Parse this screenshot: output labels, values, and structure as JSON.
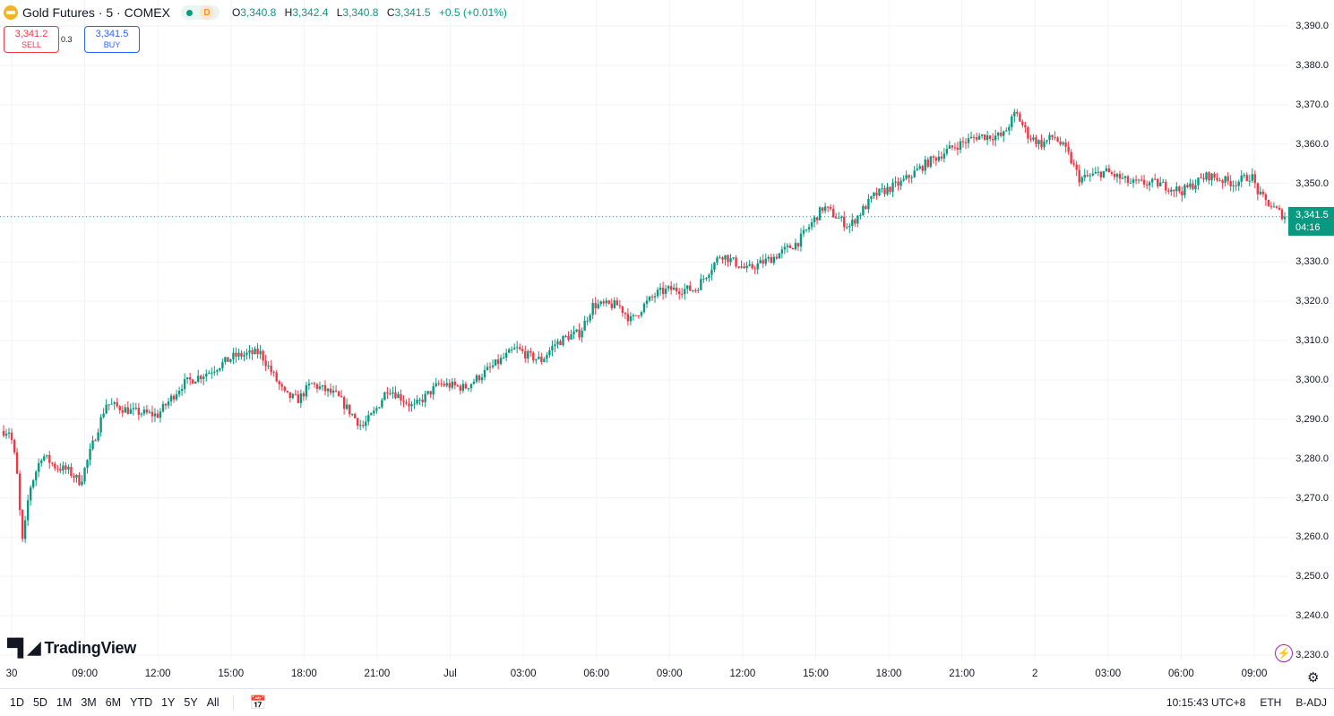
{
  "header": {
    "symbol_title": "Gold Futures · 5 · COMEX",
    "badge": "D",
    "ohlc": [
      {
        "k": "O",
        "v": "3,340.8"
      },
      {
        "k": "H",
        "v": "3,342.4"
      },
      {
        "k": "L",
        "v": "3,340.8"
      },
      {
        "k": "C",
        "v": "3,341.5"
      }
    ],
    "change": "+0.5 (+0.01%)"
  },
  "trade": {
    "sell_price": "3,341.2",
    "sell_label": "SELL",
    "spread": "0.3",
    "buy_price": "3,341.5",
    "buy_label": "BUY"
  },
  "price_label": {
    "price": "3,341.5",
    "countdown": "04:16"
  },
  "logo_text": "TradingView",
  "range_buttons": [
    "1D",
    "5D",
    "1M",
    "3M",
    "6M",
    "YTD",
    "1Y",
    "5Y",
    "All"
  ],
  "status": {
    "time": "10:15:43 UTC+8",
    "session": "ETH",
    "adjust": "B-ADJ"
  },
  "colors": {
    "up": "#089981",
    "down": "#f23645",
    "grid": "#f0f3fa",
    "accent": "#2962ff"
  },
  "chart_data": {
    "type": "candlestick",
    "interval": "5",
    "ylim": [
      3225,
      3395
    ],
    "y_ticks": [
      3230,
      3240,
      3250,
      3260,
      3270,
      3280,
      3290,
      3300,
      3310,
      3320,
      3330,
      3340,
      3350,
      3360,
      3370,
      3380,
      3390
    ],
    "y_tick_labels": [
      "3,230.0",
      "3,240.0",
      "3,250.0",
      "3,260.0",
      "3,270.0",
      "3,280.0",
      "3,290.0",
      "3,300.0",
      "3,310.0",
      "3,320.0",
      "3,330.0",
      "3,340.0",
      "3,350.0",
      "3,360.0",
      "3,370.0",
      "3,380.0",
      "3,390.0"
    ],
    "x_tick_labels": [
      "30",
      "09:00",
      "12:00",
      "15:00",
      "18:00",
      "21:00",
      "Jul",
      "03:00",
      "06:00",
      "09:00",
      "12:00",
      "15:00",
      "18:00",
      "21:00",
      "2",
      "03:00",
      "06:00",
      "09:00"
    ],
    "path": [
      {
        "t": 0,
        "p": 3287
      },
      {
        "t": 0.25,
        "p": 3287
      },
      {
        "t": 0.5,
        "p": 3278
      },
      {
        "t": 0.65,
        "p": 3265
      },
      {
        "t": 0.75,
        "p": 3258
      },
      {
        "t": 1.0,
        "p": 3272
      },
      {
        "t": 1.5,
        "p": 3281
      },
      {
        "t": 2.0,
        "p": 3278
      },
      {
        "t": 2.5,
        "p": 3277
      },
      {
        "t": 3.0,
        "p": 3274
      },
      {
        "t": 3.5,
        "p": 3284
      },
      {
        "t": 4.0,
        "p": 3294
      },
      {
        "t": 5.0,
        "p": 3292
      },
      {
        "t": 6.0,
        "p": 3291
      },
      {
        "t": 7.0,
        "p": 3299
      },
      {
        "t": 8.0,
        "p": 3302
      },
      {
        "t": 9.0,
        "p": 3306
      },
      {
        "t": 10.0,
        "p": 3307
      },
      {
        "t": 11.0,
        "p": 3296
      },
      {
        "t": 11.5,
        "p": 3295
      },
      {
        "t": 12.0,
        "p": 3299
      },
      {
        "t": 13.0,
        "p": 3296
      },
      {
        "t": 14.0,
        "p": 3288
      },
      {
        "t": 14.5,
        "p": 3292
      },
      {
        "t": 15.0,
        "p": 3298
      },
      {
        "t": 16.0,
        "p": 3293
      },
      {
        "t": 17.0,
        "p": 3299
      },
      {
        "t": 18.0,
        "p": 3298
      },
      {
        "t": 19.0,
        "p": 3303
      },
      {
        "t": 20.0,
        "p": 3308
      },
      {
        "t": 20.5,
        "p": 3306
      },
      {
        "t": 21.0,
        "p": 3305
      },
      {
        "t": 21.5,
        "p": 3309
      },
      {
        "t": 22.0,
        "p": 3311
      },
      {
        "t": 22.5,
        "p": 3312
      },
      {
        "t": 23.0,
        "p": 3319
      },
      {
        "t": 24.0,
        "p": 3319
      },
      {
        "t": 24.5,
        "p": 3315
      },
      {
        "t": 25.0,
        "p": 3319
      },
      {
        "t": 25.5,
        "p": 3322
      },
      {
        "t": 26.0,
        "p": 3323
      },
      {
        "t": 27.0,
        "p": 3323
      },
      {
        "t": 28.0,
        "p": 3332
      },
      {
        "t": 29.0,
        "p": 3328
      },
      {
        "t": 30.0,
        "p": 3331
      },
      {
        "t": 31.0,
        "p": 3335
      },
      {
        "t": 32.0,
        "p": 3344
      },
      {
        "t": 33.0,
        "p": 3339
      },
      {
        "t": 34.0,
        "p": 3347
      },
      {
        "t": 35.0,
        "p": 3350
      },
      {
        "t": 36.0,
        "p": 3355
      },
      {
        "t": 37.0,
        "p": 3359
      },
      {
        "t": 38.0,
        "p": 3362
      },
      {
        "t": 39.0,
        "p": 3362
      },
      {
        "t": 39.5,
        "p": 3368
      },
      {
        "t": 40.0,
        "p": 3362
      },
      {
        "t": 40.5,
        "p": 3360
      },
      {
        "t": 41.0,
        "p": 3362
      },
      {
        "t": 41.5,
        "p": 3358
      },
      {
        "t": 42.0,
        "p": 3351
      },
      {
        "t": 43.0,
        "p": 3353
      },
      {
        "t": 44.0,
        "p": 3350
      },
      {
        "t": 45.0,
        "p": 3350
      },
      {
        "t": 46.0,
        "p": 3348
      },
      {
        "t": 47.0,
        "p": 3352
      },
      {
        "t": 48.0,
        "p": 3350
      },
      {
        "t": 48.7,
        "p": 3352
      },
      {
        "t": 49.0,
        "p": 3347
      },
      {
        "t": 49.5,
        "p": 3344
      },
      {
        "t": 50.0,
        "p": 3341.5
      }
    ],
    "last": {
      "open": 3340.8,
      "high": 3342.4,
      "low": 3340.8,
      "close": 3341.5
    }
  }
}
